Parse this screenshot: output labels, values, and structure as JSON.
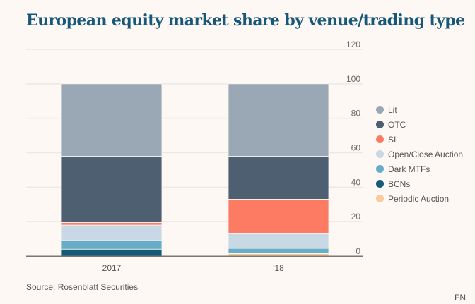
{
  "chart_data": {
    "type": "bar",
    "stacked": true,
    "title": "European equity market share by venue/trading type",
    "xlabel": "",
    "ylabel": "",
    "ylim": [
      0,
      120
    ],
    "yticks": [
      0,
      20,
      40,
      60,
      80,
      100,
      120
    ],
    "grid": true,
    "legend_position": "right",
    "categories": [
      "2017",
      "'18"
    ],
    "series": [
      {
        "name": "BCNs",
        "color": "#155a78",
        "values": [
          4,
          0
        ]
      },
      {
        "name": "Periodic Auction",
        "color": "#f9cb9c",
        "values": [
          0,
          1.5
        ]
      },
      {
        "name": "Dark MTFs",
        "color": "#67adc8",
        "values": [
          5,
          3
        ]
      },
      {
        "name": "Open/Close Auction",
        "color": "#c9d8e5",
        "values": [
          9,
          8.5
        ]
      },
      {
        "name": "SI",
        "color": "#fd7b62",
        "values": [
          1.5,
          20
        ]
      },
      {
        "name": "OTC",
        "color": "#4d5f70",
        "values": [
          38.5,
          25
        ]
      },
      {
        "name": "Lit",
        "color": "#9aa8b5",
        "values": [
          42,
          42
        ]
      }
    ],
    "legend_order": [
      "Lit",
      "OTC",
      "SI",
      "Open/Close Auction",
      "Dark MTFs",
      "BCNs",
      "Periodic Auction"
    ]
  },
  "legend": [
    {
      "label": "Lit",
      "color": "#9aa8b5"
    },
    {
      "label": "OTC",
      "color": "#4d5f70"
    },
    {
      "label": "SI",
      "color": "#fd7b62"
    },
    {
      "label": "Open/Close Auction",
      "color": "#c9d8e5"
    },
    {
      "label": "Dark MTFs",
      "color": "#67adc8"
    },
    {
      "label": "BCNs",
      "color": "#155a78"
    },
    {
      "label": "Periodic Auction",
      "color": "#f9cb9c"
    }
  ],
  "source": "Source: Rosenblatt Securities",
  "brand": "FN"
}
